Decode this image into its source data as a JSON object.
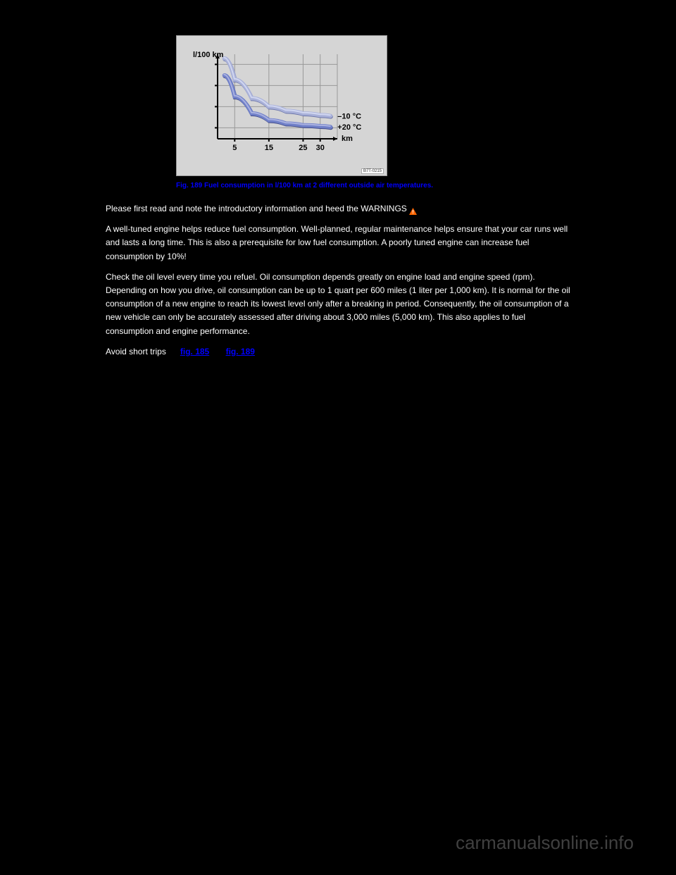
{
  "chart": {
    "type": "line",
    "background_color": "#d5d5d5",
    "plot_background": "#d5d5d5",
    "grid_color": "#999999",
    "axis_color": "#000000",
    "y_axis_label": "l/100 km",
    "y_axis_label_fontsize": 11,
    "y_axis_label_weight": "bold",
    "x_axis_label": "km",
    "x_axis_label_fontsize": 11,
    "x_axis_label_weight": "bold",
    "x_ticks": [
      5,
      15,
      25,
      30
    ],
    "x_tick_fontsize": 11,
    "x_tick_weight": "bold",
    "xlim": [
      0,
      35
    ],
    "y_grid_lines": 4,
    "series": [
      {
        "label": "–10 °C",
        "label_fontsize": 11,
        "label_weight": "bold",
        "color": "#a8b0d8",
        "highlight_color": "#d0d6f0",
        "shadow_color": "#6a74a8",
        "line_width": 6,
        "points": [
          [
            2,
            95
          ],
          [
            5,
            70
          ],
          [
            10,
            48
          ],
          [
            15,
            38
          ],
          [
            20,
            33
          ],
          [
            25,
            30
          ],
          [
            30,
            28
          ],
          [
            33,
            27
          ]
        ]
      },
      {
        "label": "+20 °C",
        "label_fontsize": 11,
        "label_weight": "bold",
        "color": "#7080c8",
        "highlight_color": "#a8b0e0",
        "shadow_color": "#404a88",
        "line_width": 6,
        "points": [
          [
            2,
            75
          ],
          [
            5,
            50
          ],
          [
            10,
            30
          ],
          [
            15,
            22
          ],
          [
            20,
            18
          ],
          [
            25,
            16
          ],
          [
            30,
            15
          ],
          [
            33,
            14
          ]
        ]
      }
    ],
    "chart_id": "B7T-0215"
  },
  "caption": "Fig. 189 Fuel consumption in l/100 km at 2 different outside air temperatures.",
  "paragraphs": {
    "p1_pre": "Please first read and note the introductory information and heed the WARNINGS ",
    "p1_post": "",
    "p2": "A well-tuned engine helps reduce fuel consumption. Well-planned, regular maintenance helps ensure that your car runs well and lasts a long time. This is also a prerequisite for low fuel consumption. A poorly tuned engine can increase fuel consumption by 10%!",
    "p3": "Check the oil level every time you refuel. Oil consumption depends greatly on engine load and engine speed (rpm). Depending on how you drive, oil consumption can be up to 1 quart per 600 miles (1 liter per 1,000 km). It is normal for the oil consumption of a new engine to reach its lowest level only after a breaking in period. Consequently, the oil consumption of a new vehicle can only be accurately assessed after driving about 3,000 miles (5,000 km). This also applies to fuel consumption and engine performance.",
    "p4": "Avoid short trips",
    "link1": "fig. 185",
    "link2": "fig. 189"
  },
  "warning_icon": {
    "fill": "#ff6600",
    "stroke": "#ffffff"
  },
  "watermark": "carmanualsonline.info"
}
